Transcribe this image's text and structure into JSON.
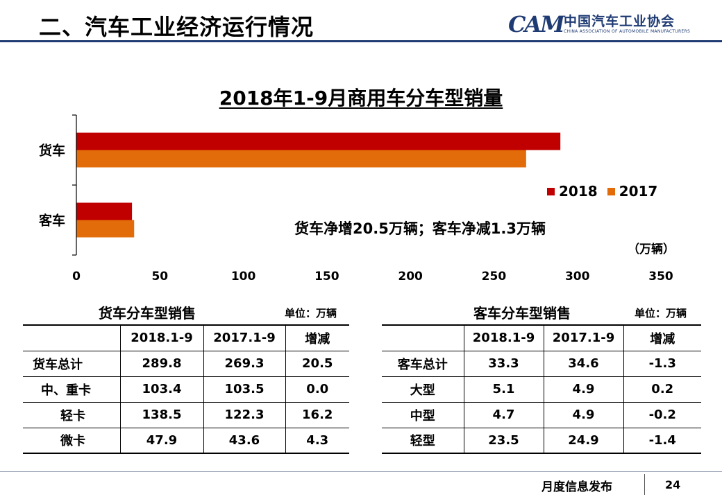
{
  "header": {
    "title": "二、汽车工业经济运行情况",
    "logo_mark": "CAM",
    "logo_cn": "中国汽车工业协会",
    "logo_en": "CHINA ASSOCIATION OF AUTOMOBILE MANUFACTURERS"
  },
  "chart_data": {
    "type": "bar",
    "orientation": "horizontal",
    "title": "2018年1-9月商用车分车型销量",
    "categories": [
      "货车",
      "客车"
    ],
    "series": [
      {
        "name": "2018",
        "values": [
          289.8,
          33.3
        ],
        "color": "#c00000"
      },
      {
        "name": "2017",
        "values": [
          269.3,
          34.6
        ],
        "color": "#e36c0a"
      }
    ],
    "xlim": [
      0,
      350
    ],
    "xticks": [
      "0",
      "50",
      "100",
      "150",
      "200",
      "250",
      "300",
      "350"
    ],
    "unit": "（万辆）",
    "annotation": "货车净增20.5万辆；客车净减1.3万辆",
    "legend_position": "right",
    "grid": false
  },
  "tables": {
    "truck": {
      "title": "货车分车型销售",
      "unit": "单位：万辆",
      "header": [
        "",
        "2018.1-9",
        "2017.1-9",
        "增减"
      ],
      "rows": [
        [
          "货车总计",
          "289.8",
          "269.3",
          "20.5"
        ],
        [
          "中、重卡",
          "103.4",
          "103.5",
          "0.0"
        ],
        [
          "轻卡",
          "138.5",
          "122.3",
          "16.2"
        ],
        [
          "微卡",
          "47.9",
          "43.6",
          "4.3"
        ]
      ]
    },
    "bus": {
      "title": "客车分车型销售",
      "unit": "单位：万辆",
      "header": [
        "",
        "2018.1-9",
        "2017.1-9",
        "增减"
      ],
      "rows": [
        [
          "客车总计",
          "33.3",
          "34.6",
          "-1.3"
        ],
        [
          "大型",
          "5.1",
          "4.9",
          "0.2"
        ],
        [
          "中型",
          "4.7",
          "4.9",
          "-0.2"
        ],
        [
          "轻型",
          "23.5",
          "24.9",
          "-1.4"
        ]
      ]
    }
  },
  "footer": {
    "text": "月度信息发布",
    "page": "24"
  }
}
